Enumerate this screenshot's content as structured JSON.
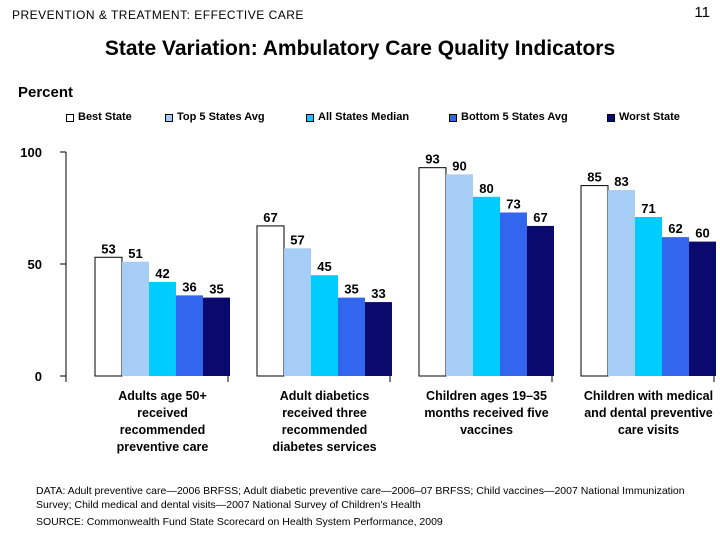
{
  "header": "PREVENTION & TREATMENT: EFFECTIVE CARE",
  "page_number": "11",
  "unit_label": "Percent",
  "footnote": "DATA: Adult preventive care—2006 BRFSS; Adult diabetic preventive care—2006–07 BRFSS; Child vaccines—2007 National Immunization Survey; Child medical and dental visits—2007 National Survey of Children's Health",
  "source": "SOURCE: Commonwealth Fund State Scorecard on Health System Performance, 2009",
  "chart_data": {
    "type": "bar",
    "title": "State Variation: Ambulatory Care Quality Indicators",
    "ylabel": "Percent",
    "xlabel": "",
    "ylim": [
      0,
      100
    ],
    "yticks": [
      0,
      50,
      100
    ],
    "legend_position": "top",
    "categories": [
      "Adults age 50+ received recommended preventive care",
      "Adult diabetics received three recommended diabetes services",
      "Children ages 19–35 months received five vaccines",
      "Children with medical and dental preventive care visits"
    ],
    "category_lines": [
      [
        "Adults age 50+",
        "received",
        "recommended",
        "preventive care"
      ],
      [
        "Adult diabetics",
        "received three",
        "recommended",
        "diabetes services"
      ],
      [
        "Children ages 19–35",
        "months received five",
        "vaccines"
      ],
      [
        "Children with medical",
        "and dental preventive",
        "care visits"
      ]
    ],
    "series": [
      {
        "name": "Best State",
        "color": "#ffffff",
        "values": [
          53,
          67,
          93,
          85
        ]
      },
      {
        "name": "Top 5 States Avg",
        "color": "#a6cdf5",
        "values": [
          51,
          57,
          90,
          83
        ]
      },
      {
        "name": "All States Median",
        "color": "#00ccff",
        "values": [
          42,
          45,
          80,
          71
        ]
      },
      {
        "name": "Bottom 5 States Avg",
        "color": "#3366ee",
        "values": [
          36,
          35,
          73,
          62
        ]
      },
      {
        "name": "Worst State",
        "color": "#0a0a6e",
        "values": [
          35,
          33,
          67,
          60
        ]
      }
    ]
  }
}
